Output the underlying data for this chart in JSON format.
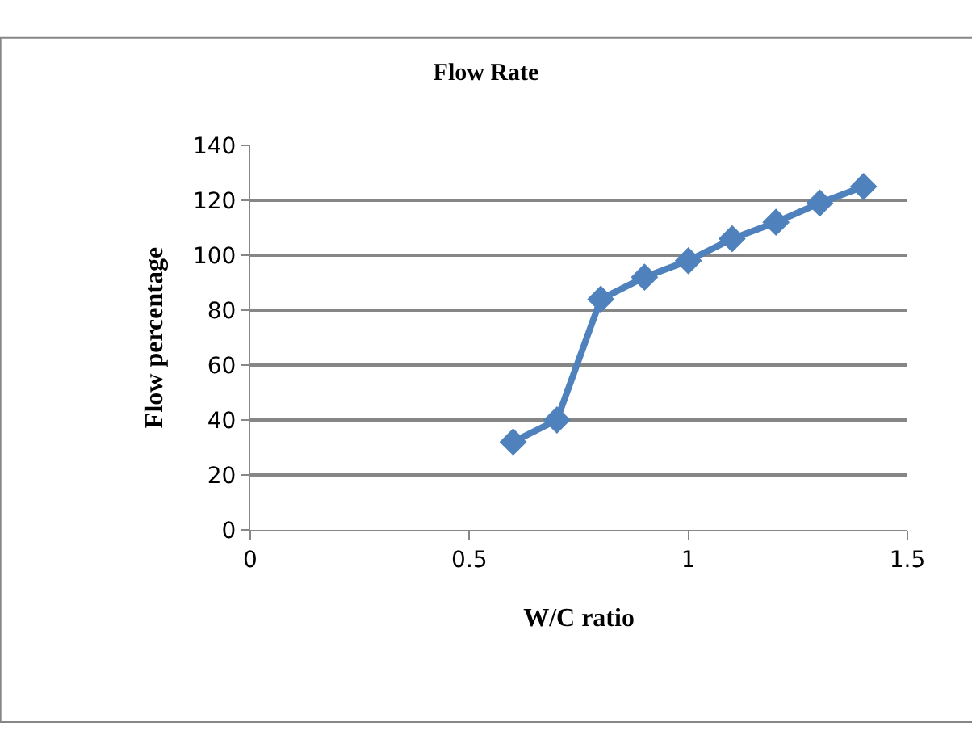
{
  "chart_data": {
    "type": "line",
    "title": "Flow Rate",
    "xlabel": "W/C ratio",
    "ylabel": "Flow percentage",
    "x": [
      0.6,
      0.7,
      0.8,
      0.9,
      1.0,
      1.1,
      1.2,
      1.3,
      1.4
    ],
    "series": [
      {
        "color": "#4f81bd",
        "values": [
          32,
          40,
          84,
          92,
          98,
          106,
          112,
          119,
          125
        ]
      }
    ],
    "xlim": [
      0,
      1.5
    ],
    "xticks": [
      0,
      0.5,
      1,
      1.5
    ],
    "ylim": [
      0,
      140
    ],
    "yticks": [
      0,
      20,
      40,
      60,
      80,
      100,
      120,
      140
    ],
    "grid": "y",
    "marker": "diamond",
    "line_style": "solid"
  }
}
